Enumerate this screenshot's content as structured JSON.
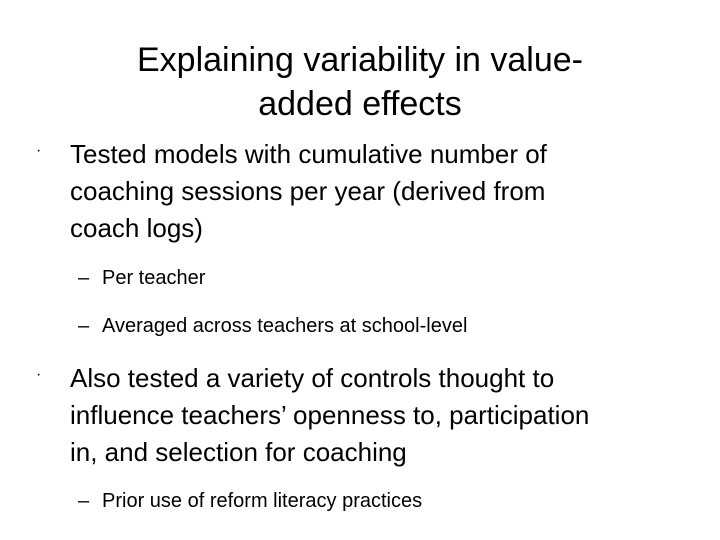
{
  "slide": {
    "title_line1": "Explaining variability in value-",
    "title_line2": "added effects",
    "bullet_marker": "·",
    "dash_marker": "–",
    "bullets": [
      {
        "lines": [
          "Tested models with cumulative number of",
          "coaching sessions per year (derived from",
          "coach logs)"
        ],
        "subitems": [
          "Per teacher",
          "Averaged across teachers at school-level"
        ]
      },
      {
        "lines": [
          "Also tested a variety of controls thought to",
          "influence teachers’ openness to, participation",
          "in, and selection for coaching"
        ],
        "subitems": [
          "Prior use of reform literacy practices"
        ]
      }
    ]
  }
}
